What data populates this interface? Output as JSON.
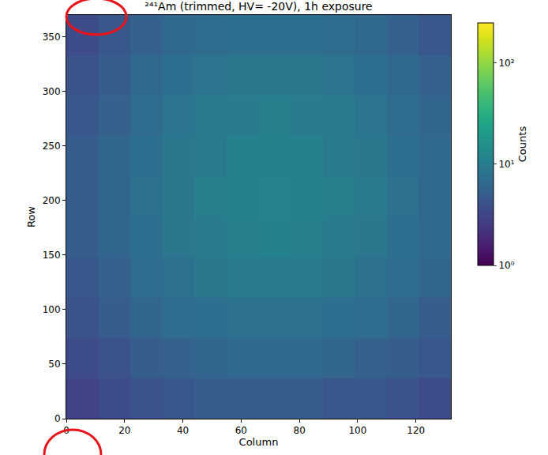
{
  "chart_data": {
    "type": "heatmap",
    "title": "²⁴¹Am (trimmed, HV= -20V), 1h exposure",
    "x_label": "Column",
    "y_label": "Row",
    "xlim": [
      0,
      132
    ],
    "ylim": [
      0,
      370
    ],
    "xticks": [
      0,
      20,
      40,
      60,
      80,
      100,
      120
    ],
    "yticks": [
      0,
      50,
      100,
      150,
      200,
      250,
      300,
      350
    ],
    "x_edges": [
      0,
      11,
      22,
      33,
      44,
      55,
      66,
      77,
      88,
      99,
      110,
      121,
      132
    ],
    "y_edges": [
      0,
      37,
      74,
      111,
      148,
      185,
      222,
      259,
      296,
      333,
      370
    ],
    "cells": [
      [
        3,
        3.5,
        4,
        4.5,
        5,
        5,
        5,
        5,
        4.5,
        4.5,
        4,
        3.5
      ],
      [
        3.5,
        4,
        5,
        5.5,
        6,
        6.5,
        6.5,
        6.5,
        6,
        5.5,
        5,
        4.5
      ],
      [
        4,
        5,
        6,
        7,
        7.5,
        8,
        8,
        8,
        7.5,
        7,
        6,
        5
      ],
      [
        4.5,
        5.5,
        7,
        8,
        9,
        9.5,
        9.5,
        9.5,
        9,
        8,
        7,
        6
      ],
      [
        5,
        6,
        7.5,
        9,
        10,
        10.5,
        11,
        10.5,
        10,
        9,
        7.5,
        6.5
      ],
      [
        5,
        6,
        8,
        9,
        10.5,
        11,
        11.5,
        11,
        10.5,
        9.5,
        8,
        6.5
      ],
      [
        5,
        6,
        7.5,
        9,
        10,
        11,
        11,
        11,
        10,
        9,
        7.5,
        6.5
      ],
      [
        4.5,
        5.5,
        7,
        8.5,
        9.5,
        10,
        10.5,
        10,
        9.5,
        8.5,
        7,
        6
      ],
      [
        4,
        5,
        6.5,
        7.5,
        8.5,
        9,
        9,
        9,
        8.5,
        7.5,
        6.5,
        5.5
      ],
      [
        3.5,
        4.5,
        5.5,
        6.5,
        7,
        7.5,
        7.5,
        7.5,
        7,
        6.5,
        5.5,
        4.5
      ]
    ],
    "colorbar_label": "Counts",
    "colorbar_lim": [
      1,
      250
    ],
    "colorbar_ticks": [
      {
        "value": 1,
        "label": "10⁰"
      },
      {
        "value": 10,
        "label": "10¹"
      },
      {
        "value": 100,
        "label": "10²"
      }
    ],
    "log": "color",
    "color": "Viridis",
    "grid": false
  }
}
